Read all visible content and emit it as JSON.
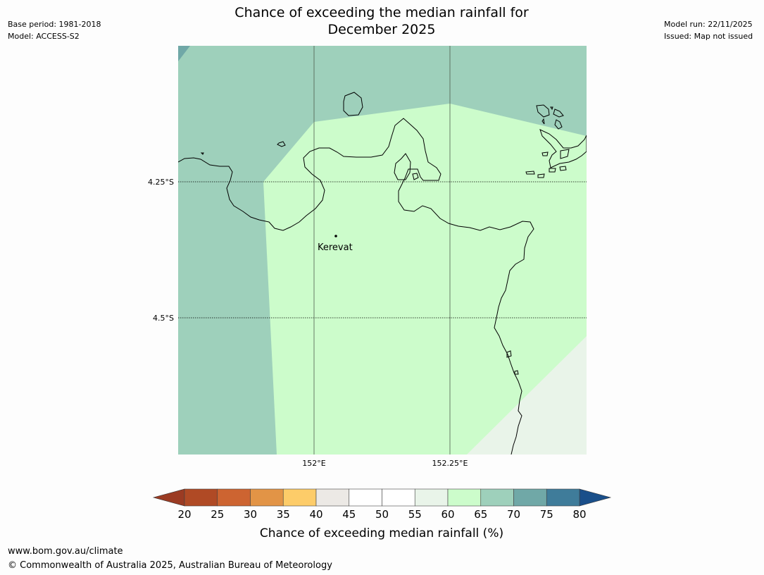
{
  "header": {
    "title_line1": "Chance of exceeding the median rainfall for",
    "title_line2": "December 2025",
    "base_period": "Base period: 1981-2018",
    "model": "Model: ACCESS-S2",
    "model_run": "Model run: 22/11/2025",
    "issued": "Issued: Map not issued"
  },
  "map": {
    "lat_labels": [
      "4.25°S",
      "4.5°S"
    ],
    "lon_labels": [
      "152°E",
      "152.25°E"
    ],
    "place_label": "Kerevat",
    "region_classes": [
      {
        "range": "70-75",
        "color": "#70a8a7"
      },
      {
        "range": "65-70",
        "color": "#9ed0bb"
      },
      {
        "range": "60-65",
        "color": "#ccfccb"
      },
      {
        "range": "55-60",
        "color": "#e9f4e9"
      }
    ]
  },
  "colorbar": {
    "label": "Chance of exceeding median rainfall (%)",
    "ticks": [
      "20",
      "25",
      "30",
      "35",
      "40",
      "45",
      "50",
      "55",
      "60",
      "65",
      "70",
      "75",
      "80"
    ],
    "colors": [
      "#b04a25",
      "#cd6431",
      "#e29446",
      "#fdcc69",
      "#ece9e5",
      "#ffffff",
      "#ffffff",
      "#e9f4e9",
      "#ccfccb",
      "#9ed0bb",
      "#70a8a7",
      "#3f7c9a"
    ],
    "under_color": "#9b3b23",
    "over_color": "#1a4f8a"
  },
  "footer": {
    "url": "www.bom.gov.au/climate",
    "copyright": "© Commonwealth of Australia 2025, Australian Bureau of Meteorology"
  }
}
